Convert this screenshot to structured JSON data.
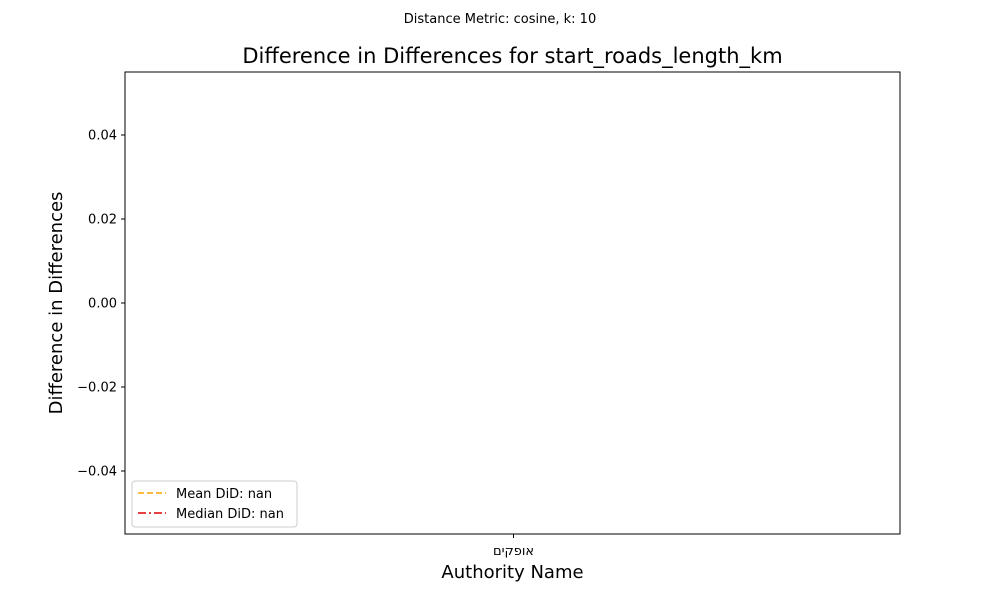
{
  "suptitle": "Distance Metric: cosine, k: 10",
  "chart_data": {
    "type": "bar",
    "title": "Difference in Differences for start_roads_length_km",
    "xlabel": "Authority Name",
    "ylabel": "Difference in Differences",
    "categories": [
      "אופקים"
    ],
    "values": [
      null
    ],
    "ylim": [
      -0.055,
      0.055
    ],
    "yticks": [
      -0.04,
      -0.02,
      0.0,
      0.02,
      0.04
    ],
    "ytick_labels": [
      "−0.04",
      "−0.02",
      "0.00",
      "0.02",
      "0.04"
    ],
    "grid": false,
    "legend_position": "lower left",
    "reference_lines": [
      {
        "label": "Mean DiD: nan",
        "value": null,
        "color": "#ffa500",
        "dash": "dashed"
      },
      {
        "label": "Median DiD: nan",
        "value": null,
        "color": "#e00000",
        "dash": "dashdot"
      }
    ]
  }
}
